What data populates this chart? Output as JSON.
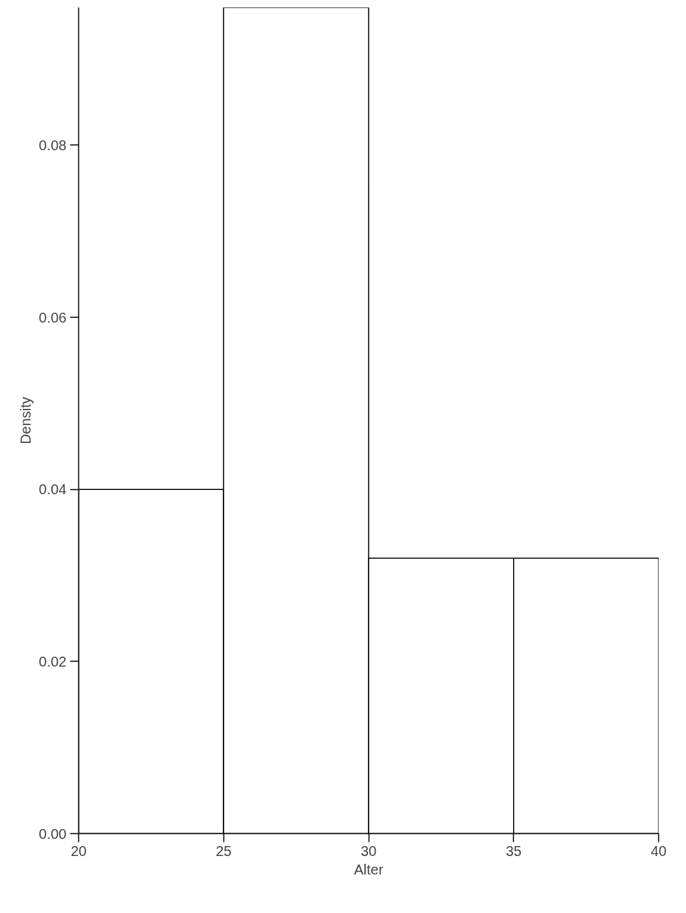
{
  "chart_data": {
    "type": "histogram",
    "xlabel": "Alter",
    "ylabel": "Density",
    "bins": [
      20,
      25,
      30,
      35,
      40
    ],
    "values": [
      0.04,
      0.096,
      0.032,
      0.032
    ],
    "color": "#ffffff",
    "xlim": [
      20,
      40
    ],
    "xticks": [
      20,
      25,
      30,
      35,
      40
    ],
    "ylim": [
      0,
      0.096
    ],
    "yticks": [
      {
        "value": 0,
        "label": "0.00"
      },
      {
        "value": 0.02,
        "label": "0.02"
      },
      {
        "value": 0.04,
        "label": "0.04"
      },
      {
        "value": 0.06,
        "label": "0.06"
      },
      {
        "value": 0.08,
        "label": "0.08"
      }
    ],
    "grid": false
  }
}
